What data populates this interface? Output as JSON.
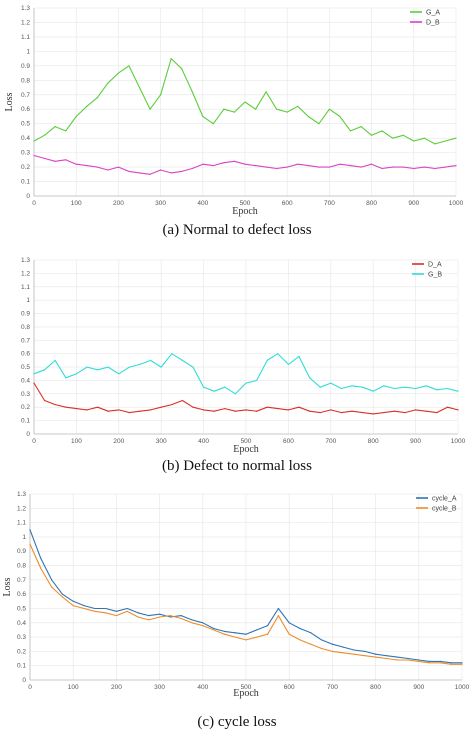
{
  "chart_data": [
    {
      "type": "line",
      "caption": "(a) Normal to defect loss",
      "xlabel": "Epoch",
      "ylabel": "Loss",
      "xlim": [
        0,
        1000
      ],
      "ylim": [
        0,
        1.3
      ],
      "xticks": [
        "0",
        "100",
        "200",
        "300",
        "400",
        "500",
        "600",
        "700",
        "800",
        "900",
        "1000"
      ],
      "yticks": [
        "0",
        "0.1",
        "0.2",
        "0.3",
        "0.4",
        "0.5",
        "0.6",
        "0.7",
        "0.8",
        "0.9",
        "1",
        "1.1",
        "1.2",
        "1.3"
      ],
      "grid": true,
      "legend_position": "top-right",
      "series": [
        {
          "name": "G_A",
          "color": "#5ccd3c",
          "x": [
            0,
            25,
            50,
            75,
            100,
            125,
            150,
            175,
            200,
            225,
            250,
            275,
            300,
            325,
            350,
            375,
            400,
            425,
            450,
            475,
            500,
            525,
            550,
            575,
            600,
            625,
            650,
            675,
            700,
            725,
            750,
            775,
            800,
            825,
            850,
            875,
            900,
            925,
            950,
            975,
            1000
          ],
          "y": [
            0.38,
            0.42,
            0.48,
            0.45,
            0.55,
            0.62,
            0.68,
            0.78,
            0.85,
            0.9,
            0.75,
            0.6,
            0.7,
            0.95,
            0.88,
            0.72,
            0.55,
            0.5,
            0.6,
            0.58,
            0.65,
            0.6,
            0.72,
            0.6,
            0.58,
            0.62,
            0.55,
            0.5,
            0.6,
            0.55,
            0.45,
            0.48,
            0.42,
            0.45,
            0.4,
            0.42,
            0.38,
            0.4,
            0.36,
            0.38,
            0.4
          ]
        },
        {
          "name": "D_B",
          "color": "#d943c3",
          "x": [
            0,
            25,
            50,
            75,
            100,
            125,
            150,
            175,
            200,
            225,
            250,
            275,
            300,
            325,
            350,
            375,
            400,
            425,
            450,
            475,
            500,
            525,
            550,
            575,
            600,
            625,
            650,
            675,
            700,
            725,
            750,
            775,
            800,
            825,
            850,
            875,
            900,
            925,
            950,
            975,
            1000
          ],
          "y": [
            0.28,
            0.26,
            0.24,
            0.25,
            0.22,
            0.21,
            0.2,
            0.18,
            0.2,
            0.17,
            0.16,
            0.15,
            0.18,
            0.16,
            0.17,
            0.19,
            0.22,
            0.21,
            0.23,
            0.24,
            0.22,
            0.21,
            0.2,
            0.19,
            0.2,
            0.22,
            0.21,
            0.2,
            0.2,
            0.22,
            0.21,
            0.2,
            0.22,
            0.19,
            0.2,
            0.2,
            0.19,
            0.2,
            0.19,
            0.2,
            0.21
          ]
        }
      ]
    },
    {
      "type": "line",
      "caption": "(b) Defect to normal loss",
      "xlabel": "Epoch",
      "ylabel": "",
      "xlim": [
        0,
        1000
      ],
      "ylim": [
        0,
        1.3
      ],
      "xticks": [
        "0",
        "100",
        "200",
        "300",
        "400",
        "500",
        "600",
        "700",
        "800",
        "900",
        "1000"
      ],
      "yticks": [
        "0",
        "0.1",
        "0.2",
        "0.3",
        "0.4",
        "0.5",
        "0.6",
        "0.7",
        "0.8",
        "0.9",
        "1",
        "1.1",
        "1.2",
        "1.3"
      ],
      "grid": true,
      "legend_position": "top-right",
      "series": [
        {
          "name": "D_A",
          "color": "#d9302a",
          "x": [
            0,
            25,
            50,
            75,
            100,
            125,
            150,
            175,
            200,
            225,
            250,
            275,
            300,
            325,
            350,
            375,
            400,
            425,
            450,
            475,
            500,
            525,
            550,
            575,
            600,
            625,
            650,
            675,
            700,
            725,
            750,
            775,
            800,
            825,
            850,
            875,
            900,
            925,
            950,
            975,
            1000
          ],
          "y": [
            0.38,
            0.25,
            0.22,
            0.2,
            0.19,
            0.18,
            0.2,
            0.17,
            0.18,
            0.16,
            0.17,
            0.18,
            0.2,
            0.22,
            0.25,
            0.2,
            0.18,
            0.17,
            0.19,
            0.17,
            0.18,
            0.17,
            0.2,
            0.19,
            0.18,
            0.2,
            0.17,
            0.16,
            0.18,
            0.16,
            0.17,
            0.16,
            0.15,
            0.16,
            0.17,
            0.16,
            0.18,
            0.17,
            0.16,
            0.2,
            0.18
          ]
        },
        {
          "name": "G_B",
          "color": "#33dcd8",
          "x": [
            0,
            25,
            50,
            75,
            100,
            125,
            150,
            175,
            200,
            225,
            250,
            275,
            300,
            325,
            350,
            375,
            400,
            425,
            450,
            475,
            500,
            525,
            550,
            575,
            600,
            625,
            650,
            675,
            700,
            725,
            750,
            775,
            800,
            825,
            850,
            875,
            900,
            925,
            950,
            975,
            1000
          ],
          "y": [
            0.45,
            0.48,
            0.55,
            0.42,
            0.45,
            0.5,
            0.48,
            0.5,
            0.45,
            0.5,
            0.52,
            0.55,
            0.5,
            0.6,
            0.55,
            0.5,
            0.35,
            0.32,
            0.35,
            0.3,
            0.38,
            0.4,
            0.55,
            0.6,
            0.52,
            0.58,
            0.42,
            0.35,
            0.38,
            0.34,
            0.36,
            0.35,
            0.32,
            0.36,
            0.34,
            0.35,
            0.34,
            0.36,
            0.33,
            0.34,
            0.32
          ]
        }
      ]
    },
    {
      "type": "line",
      "caption": "(c) cycle loss",
      "xlabel": "Epoch",
      "ylabel": "Loss",
      "xlim": [
        0,
        1000
      ],
      "ylim": [
        0,
        1.3
      ],
      "xticks": [
        "0",
        "100",
        "200",
        "300",
        "400",
        "500",
        "600",
        "700",
        "800",
        "900",
        "1000"
      ],
      "yticks": [
        "0",
        "0.1",
        "0.2",
        "0.3",
        "0.4",
        "0.5",
        "0.6",
        "0.7",
        "0.8",
        "0.9",
        "1",
        "1.1",
        "1.2",
        "1.3"
      ],
      "grid": true,
      "legend_position": "top-right",
      "series": [
        {
          "name": "cycle_A",
          "color": "#2f74b5",
          "x": [
            0,
            25,
            50,
            75,
            100,
            125,
            150,
            175,
            200,
            225,
            250,
            275,
            300,
            325,
            350,
            375,
            400,
            425,
            450,
            475,
            500,
            525,
            550,
            575,
            600,
            625,
            650,
            675,
            700,
            725,
            750,
            775,
            800,
            825,
            850,
            875,
            900,
            925,
            950,
            975,
            1000
          ],
          "y": [
            1.05,
            0.85,
            0.7,
            0.6,
            0.55,
            0.52,
            0.5,
            0.5,
            0.48,
            0.5,
            0.47,
            0.45,
            0.46,
            0.44,
            0.45,
            0.42,
            0.4,
            0.36,
            0.34,
            0.33,
            0.32,
            0.35,
            0.38,
            0.5,
            0.4,
            0.36,
            0.33,
            0.28,
            0.25,
            0.23,
            0.21,
            0.2,
            0.18,
            0.17,
            0.16,
            0.15,
            0.14,
            0.13,
            0.13,
            0.12,
            0.12
          ]
        },
        {
          "name": "cycle_B",
          "color": "#ed8c2b",
          "x": [
            0,
            25,
            50,
            75,
            100,
            125,
            150,
            175,
            200,
            225,
            250,
            275,
            300,
            325,
            350,
            375,
            400,
            425,
            450,
            475,
            500,
            525,
            550,
            575,
            600,
            625,
            650,
            675,
            700,
            725,
            750,
            775,
            800,
            825,
            850,
            875,
            900,
            925,
            950,
            975,
            1000
          ],
          "y": [
            0.95,
            0.78,
            0.65,
            0.58,
            0.52,
            0.5,
            0.48,
            0.47,
            0.45,
            0.48,
            0.44,
            0.42,
            0.44,
            0.45,
            0.43,
            0.4,
            0.38,
            0.35,
            0.32,
            0.3,
            0.28,
            0.3,
            0.32,
            0.45,
            0.32,
            0.28,
            0.25,
            0.22,
            0.2,
            0.19,
            0.18,
            0.17,
            0.16,
            0.15,
            0.14,
            0.14,
            0.13,
            0.12,
            0.12,
            0.11,
            0.11
          ]
        }
      ]
    }
  ]
}
